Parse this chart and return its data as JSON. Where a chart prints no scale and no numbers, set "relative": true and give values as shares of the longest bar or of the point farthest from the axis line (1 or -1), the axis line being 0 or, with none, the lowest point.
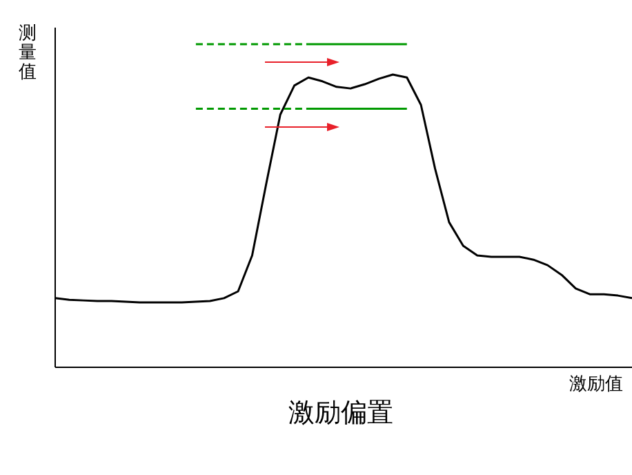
{
  "chart_data": {
    "type": "line",
    "relative": true,
    "ylabel": "测量值",
    "xlabel": "激励值",
    "annotations": [
      "激励偏置"
    ],
    "categories": [
      null,
      null,
      null,
      null,
      null,
      null,
      null,
      null,
      null,
      null,
      null,
      null,
      null,
      null,
      null,
      null,
      null,
      null,
      null,
      null,
      null,
      null,
      null,
      null,
      null,
      null,
      null,
      null,
      null,
      null,
      null,
      null,
      null,
      null,
      null,
      null,
      null,
      null,
      null,
      null,
      null,
      null
    ],
    "series": [
      {
        "color": "#000000",
        "line_style": "solid",
        "values": [
          0.214,
          0.209,
          0.207,
          0.205,
          0.205,
          0.203,
          0.201,
          0.201,
          0.201,
          0.201,
          0.203,
          0.205,
          0.214,
          0.235,
          0.346,
          0.568,
          0.782,
          0.872,
          0.897,
          0.885,
          0.868,
          0.863,
          0.876,
          0.893,
          0.906,
          0.897,
          0.812,
          0.615,
          0.449,
          0.376,
          0.346,
          0.342,
          0.342,
          0.342,
          0.333,
          0.316,
          0.286,
          0.244,
          0.226,
          0.226,
          0.222,
          0.214
        ]
      },
      {
        "color": "#009900",
        "line_style": "dashed",
        "values": [
          null,
          null,
          null,
          null,
          null,
          null,
          null,
          null,
          null,
          null,
          1,
          1,
          1,
          1,
          1,
          1,
          1,
          1,
          1,
          null,
          null,
          null,
          null,
          null,
          null,
          null,
          null,
          null,
          null,
          null,
          null,
          null,
          null,
          null,
          null,
          null,
          null,
          null,
          null,
          null,
          null,
          null
        ]
      },
      {
        "color": "#009900",
        "line_style": "solid",
        "values": [
          null,
          null,
          null,
          null,
          null,
          null,
          null,
          null,
          null,
          null,
          null,
          null,
          null,
          null,
          null,
          null,
          null,
          null,
          1,
          1,
          1,
          1,
          1,
          1,
          1,
          1,
          null,
          null,
          null,
          null,
          null,
          null,
          null,
          null,
          null,
          null,
          null,
          null,
          null,
          null,
          null,
          null
        ]
      },
      {
        "color": "#009900",
        "line_style": "dashed",
        "values": [
          null,
          null,
          null,
          null,
          null,
          null,
          null,
          null,
          null,
          null,
          0.8,
          0.8,
          0.8,
          0.8,
          0.8,
          0.8,
          0.8,
          0.8,
          0.8,
          null,
          null,
          null,
          null,
          null,
          null,
          null,
          null,
          null,
          null,
          null,
          null,
          null,
          null,
          null,
          null,
          null,
          null,
          null,
          null,
          null,
          null,
          null
        ]
      },
      {
        "color": "#009900",
        "line_style": "solid",
        "values": [
          null,
          null,
          null,
          null,
          null,
          null,
          null,
          null,
          null,
          null,
          null,
          null,
          null,
          null,
          null,
          null,
          null,
          null,
          0.8,
          0.8,
          0.8,
          0.8,
          0.8,
          0.8,
          0.8,
          0.8,
          null,
          null,
          null,
          null,
          null,
          null,
          null,
          null,
          null,
          null,
          null,
          null,
          null,
          null,
          null,
          null
        ]
      }
    ]
  }
}
